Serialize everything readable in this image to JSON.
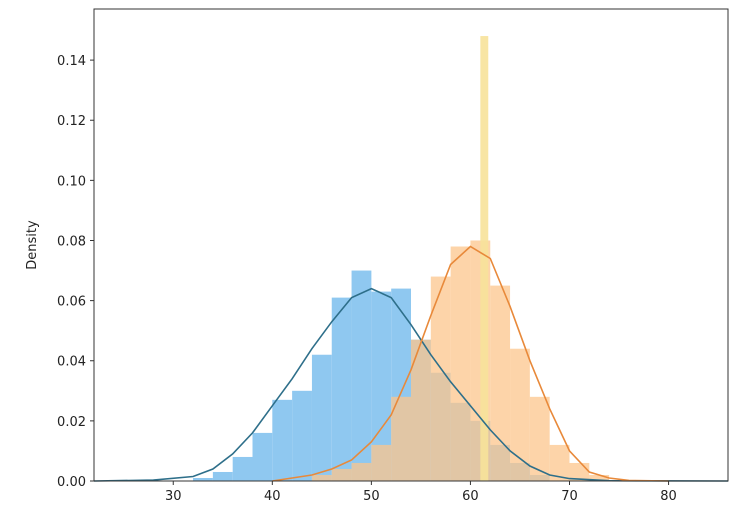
{
  "chart_data": {
    "type": "histogram-kde",
    "title": "",
    "xlabel": "",
    "ylabel": "Density",
    "xlim": [
      22,
      86
    ],
    "ylim": [
      0,
      0.157
    ],
    "x_ticks": [
      30,
      40,
      50,
      60,
      70,
      80
    ],
    "y_ticks": [
      0.0,
      0.02,
      0.04,
      0.06,
      0.08,
      0.1,
      0.12,
      0.14
    ],
    "grid": false,
    "legend": "none",
    "series": [
      {
        "color_fill": "#8fc8f0",
        "color_line": "#2e6f8a",
        "bins": [
          {
            "x0": 32,
            "x1": 34,
            "v": 0.001
          },
          {
            "x0": 34,
            "x1": 36,
            "v": 0.003
          },
          {
            "x0": 36,
            "x1": 38,
            "v": 0.008
          },
          {
            "x0": 38,
            "x1": 40,
            "v": 0.016
          },
          {
            "x0": 40,
            "x1": 42,
            "v": 0.027
          },
          {
            "x0": 42,
            "x1": 44,
            "v": 0.03
          },
          {
            "x0": 44,
            "x1": 46,
            "v": 0.042
          },
          {
            "x0": 46,
            "x1": 48,
            "v": 0.061
          },
          {
            "x0": 48,
            "x1": 50,
            "v": 0.07
          },
          {
            "x0": 50,
            "x1": 52,
            "v": 0.063
          },
          {
            "x0": 52,
            "x1": 54,
            "v": 0.064
          },
          {
            "x0": 54,
            "x1": 56,
            "v": 0.047
          },
          {
            "x0": 56,
            "x1": 58,
            "v": 0.036
          },
          {
            "x0": 58,
            "x1": 60,
            "v": 0.026
          },
          {
            "x0": 60,
            "x1": 62,
            "v": 0.02
          },
          {
            "x0": 62,
            "x1": 64,
            "v": 0.012
          },
          {
            "x0": 64,
            "x1": 66,
            "v": 0.006
          },
          {
            "x0": 66,
            "x1": 68,
            "v": 0.002
          }
        ],
        "kde": {
          "x": [
            22,
            28,
            32,
            34,
            36,
            38,
            40,
            42,
            44,
            46,
            48,
            50,
            52,
            54,
            56,
            58,
            60,
            62,
            64,
            66,
            68,
            70,
            74,
            86
          ],
          "y": [
            0,
            0.0003,
            0.0015,
            0.004,
            0.009,
            0.016,
            0.025,
            0.034,
            0.044,
            0.053,
            0.061,
            0.064,
            0.061,
            0.052,
            0.042,
            0.033,
            0.025,
            0.017,
            0.01,
            0.005,
            0.002,
            0.0008,
            0.0001,
            0
          ]
        }
      },
      {
        "color_fill": "#fcc68c",
        "color_line": "#e8893a",
        "bins": [
          {
            "x0": 44,
            "x1": 46,
            "v": 0.002
          },
          {
            "x0": 46,
            "x1": 48,
            "v": 0.004
          },
          {
            "x0": 48,
            "x1": 50,
            "v": 0.006
          },
          {
            "x0": 50,
            "x1": 52,
            "v": 0.012
          },
          {
            "x0": 52,
            "x1": 54,
            "v": 0.028
          },
          {
            "x0": 54,
            "x1": 56,
            "v": 0.047
          },
          {
            "x0": 56,
            "x1": 58,
            "v": 0.068
          },
          {
            "x0": 58,
            "x1": 60,
            "v": 0.078
          },
          {
            "x0": 60,
            "x1": 62,
            "v": 0.08
          },
          {
            "x0": 62,
            "x1": 64,
            "v": 0.065
          },
          {
            "x0": 64,
            "x1": 66,
            "v": 0.044
          },
          {
            "x0": 66,
            "x1": 68,
            "v": 0.028
          },
          {
            "x0": 68,
            "x1": 70,
            "v": 0.012
          },
          {
            "x0": 70,
            "x1": 72,
            "v": 0.006
          },
          {
            "x0": 72,
            "x1": 74,
            "v": 0.002
          }
        ],
        "spike": {
          "x0": 61.0,
          "x1": 61.8,
          "v": 0.148,
          "color": "#f7e29a"
        },
        "kde": {
          "x": [
            40,
            44,
            46,
            48,
            50,
            52,
            54,
            56,
            58,
            60,
            62,
            64,
            66,
            68,
            70,
            72,
            74,
            76,
            80
          ],
          "y": [
            0,
            0.002,
            0.004,
            0.007,
            0.013,
            0.022,
            0.037,
            0.055,
            0.072,
            0.078,
            0.074,
            0.058,
            0.04,
            0.024,
            0.01,
            0.003,
            0.001,
            0.0002,
            0
          ]
        }
      }
    ]
  }
}
